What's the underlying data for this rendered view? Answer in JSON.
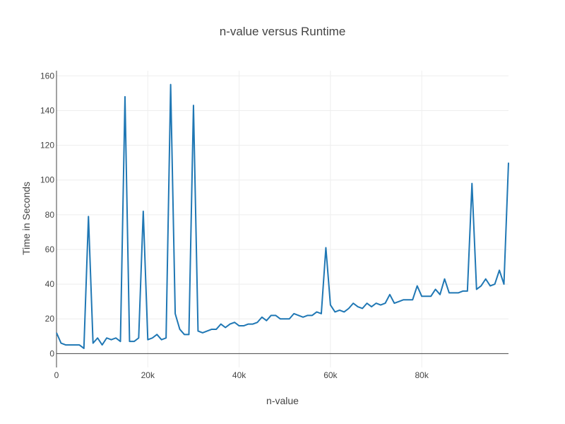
{
  "chart_data": {
    "type": "line",
    "title": "n-value versus Runtime",
    "xlabel": "n-value",
    "ylabel": "Time in Seconds",
    "xlim": [
      0,
      99000
    ],
    "ylim": [
      -8,
      163
    ],
    "x_ticks": [
      0,
      20000,
      40000,
      60000,
      80000
    ],
    "x_tick_labels": [
      "0",
      "20k",
      "40k",
      "60k",
      "80k"
    ],
    "y_ticks": [
      0,
      20,
      40,
      60,
      80,
      100,
      120,
      140,
      160
    ],
    "y_tick_labels": [
      "0",
      "20",
      "40",
      "60",
      "80",
      "100",
      "120",
      "140",
      "160"
    ],
    "grid": true,
    "line_color": "#1f77b4",
    "series": [
      {
        "x": [
          0,
          1000,
          2000,
          3000,
          4000,
          5000,
          6000,
          7000,
          8000,
          9000,
          10000,
          11000,
          12000,
          13000,
          14000,
          15000,
          16000,
          17000,
          18000,
          19000,
          20000,
          21000,
          22000,
          23000,
          24000,
          25000,
          26000,
          27000,
          28000,
          29000,
          30000,
          31000,
          32000,
          33000,
          34000,
          35000,
          36000,
          37000,
          38000,
          39000,
          40000,
          41000,
          42000,
          43000,
          44000,
          45000,
          46000,
          47000,
          48000,
          49000,
          50000,
          51000,
          52000,
          53000,
          54000,
          55000,
          56000,
          57000,
          58000,
          59000,
          60000,
          61000,
          62000,
          63000,
          64000,
          65000,
          66000,
          67000,
          68000,
          69000,
          70000,
          71000,
          72000,
          73000,
          74000,
          75000,
          76000,
          77000,
          78000,
          79000,
          80000,
          81000,
          82000,
          83000,
          84000,
          85000,
          86000,
          87000,
          88000,
          89000,
          90000,
          91000,
          92000,
          93000,
          94000,
          95000,
          96000,
          97000,
          98000,
          99000
        ],
        "y": [
          12,
          6,
          5,
          5,
          5,
          5,
          3,
          79,
          6,
          9,
          5,
          9,
          8,
          9,
          7,
          148,
          7,
          7,
          9,
          82,
          8,
          9,
          11,
          8,
          9,
          155,
          23,
          14,
          11,
          11,
          143,
          13,
          12,
          13,
          14,
          14,
          17,
          15,
          17,
          18,
          16,
          16,
          17,
          17,
          18,
          21,
          19,
          22,
          22,
          20,
          20,
          20,
          23,
          22,
          21,
          22,
          22,
          24,
          23,
          61,
          28,
          24,
          25,
          24,
          26,
          29,
          27,
          26,
          29,
          27,
          29,
          28,
          29,
          34,
          29,
          30,
          31,
          31,
          31,
          39,
          33,
          33,
          33,
          37,
          34,
          43,
          35,
          35,
          35,
          36,
          36,
          98,
          37,
          39,
          43,
          39,
          40,
          48,
          40,
          110
        ]
      }
    ]
  }
}
